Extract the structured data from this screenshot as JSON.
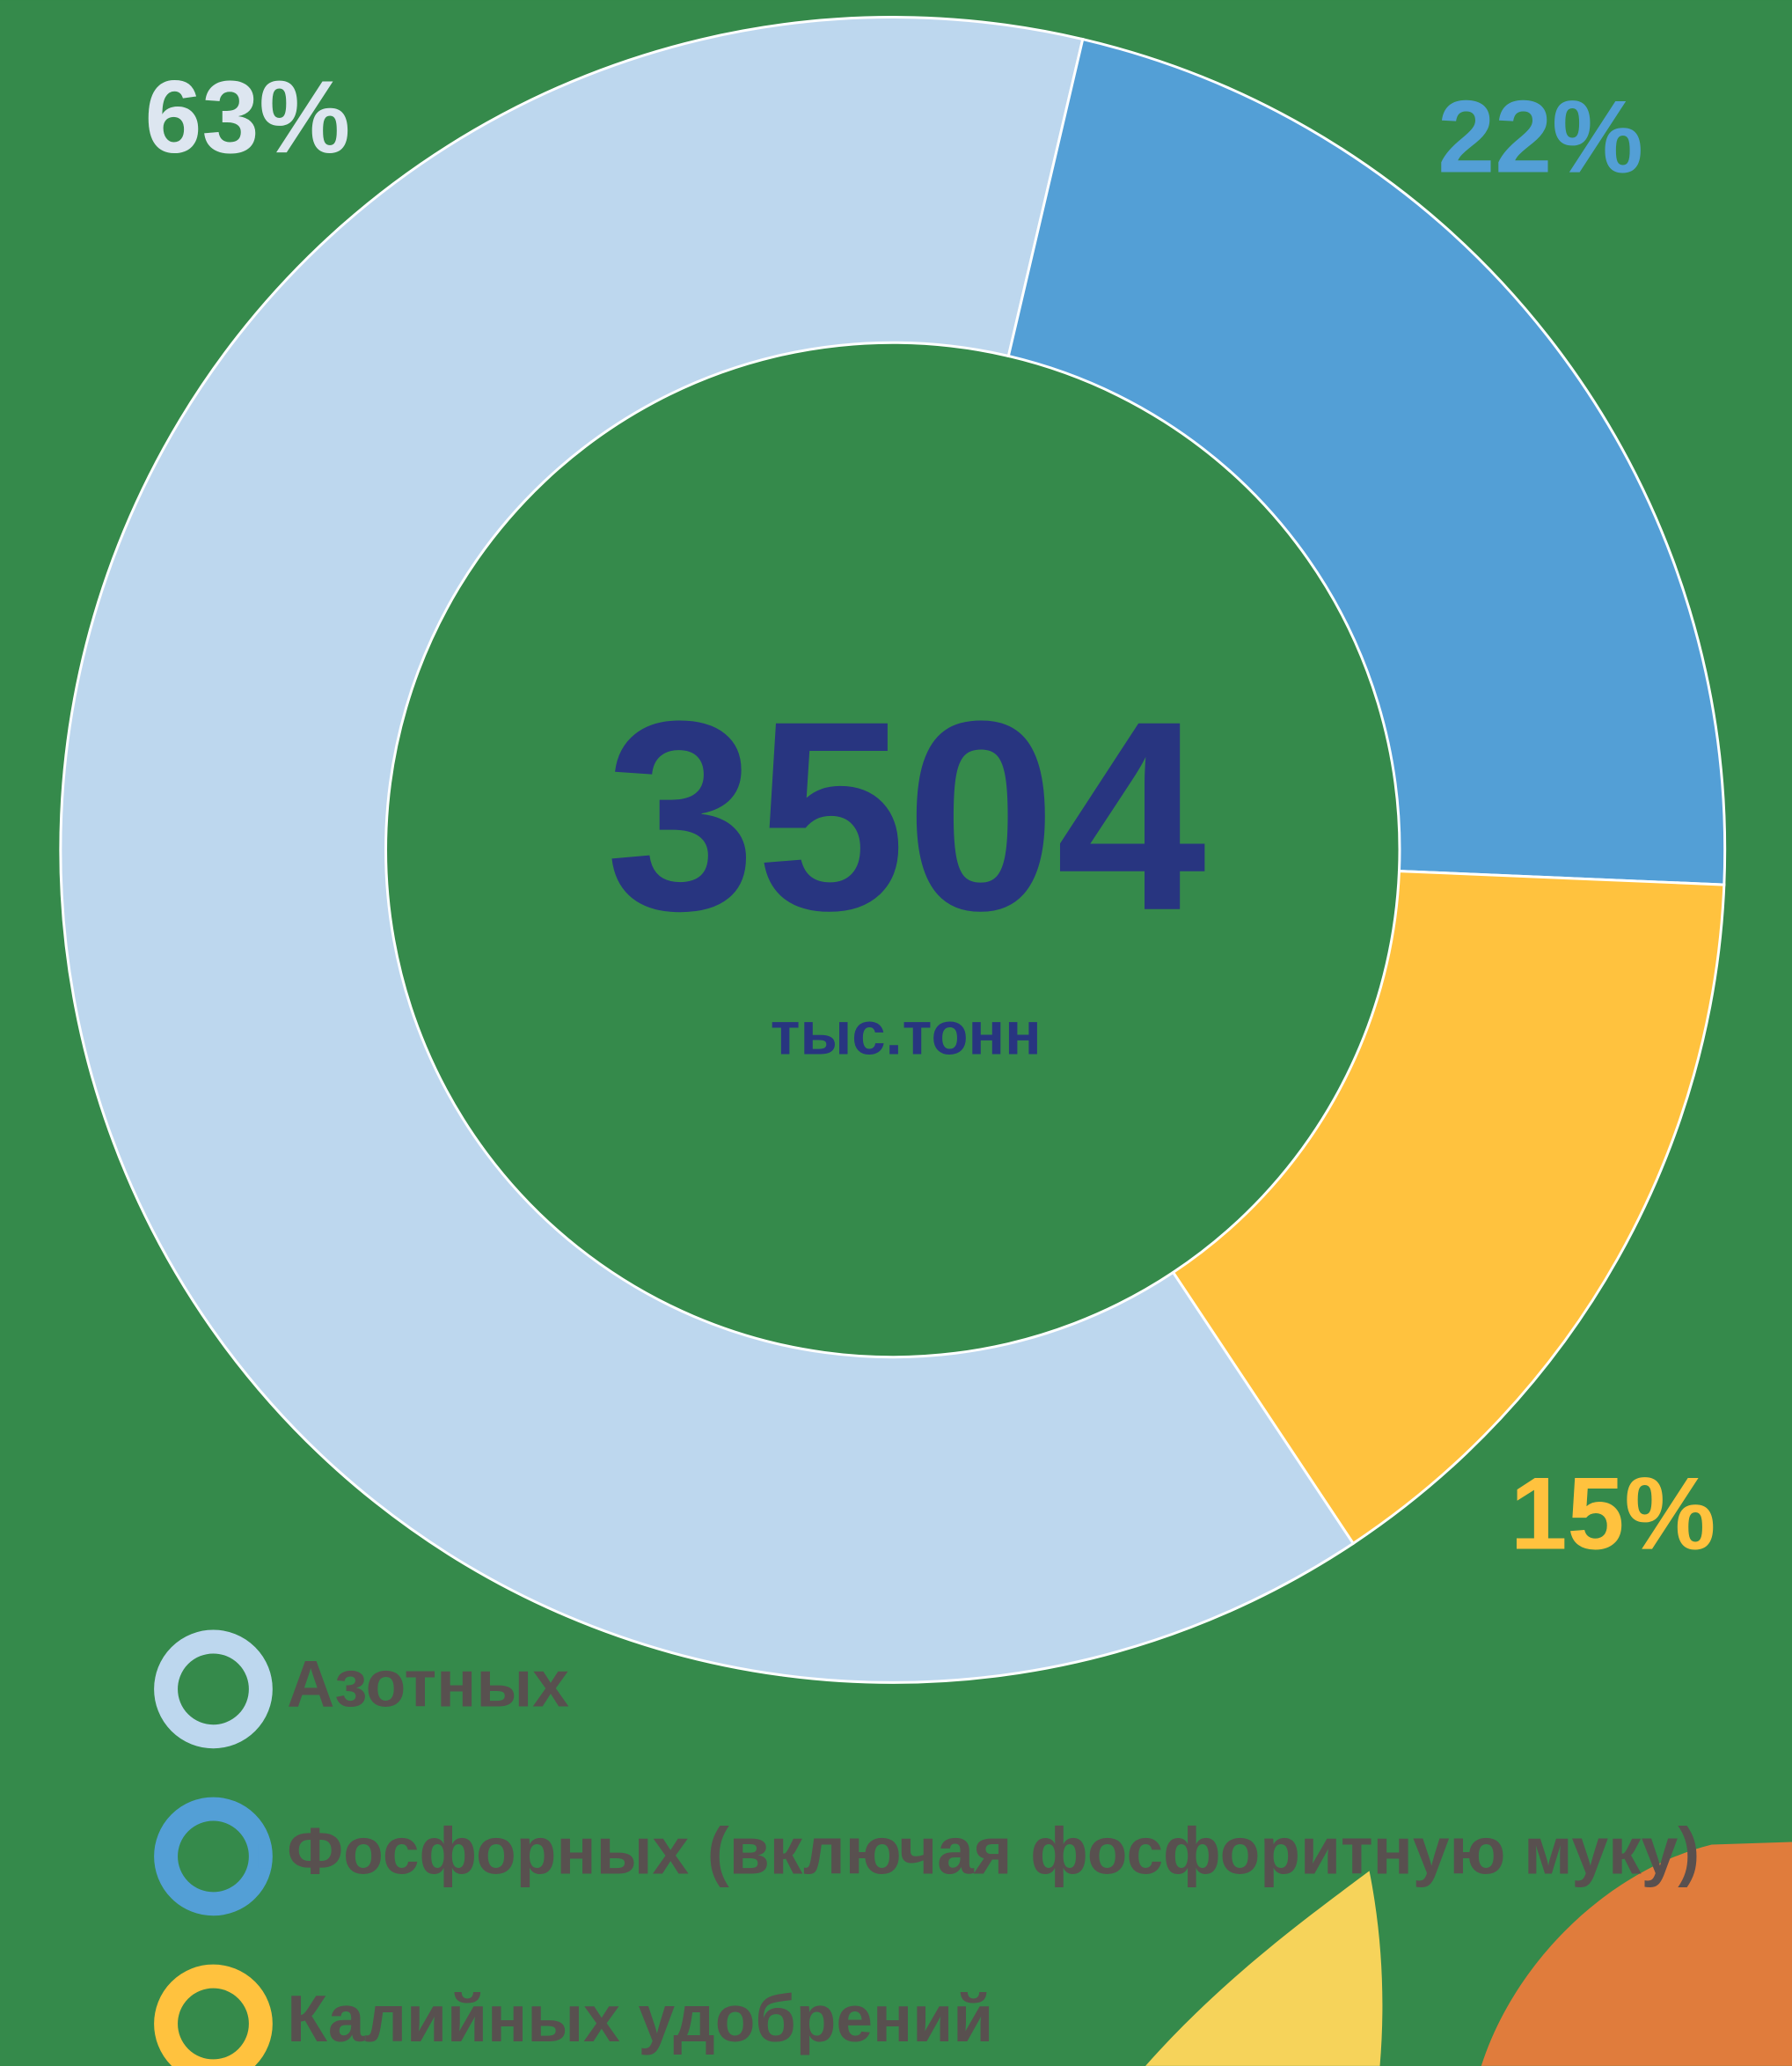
{
  "chart_data": {
    "type": "donut",
    "center_label": "3504",
    "center_sublabel": "тыс.тонн",
    "categories": [
      "Азотных",
      "Фосфорных (включая фосфоритную муку)",
      "Калийных удобрений"
    ],
    "values": [
      63,
      22,
      15
    ],
    "value_labels": [
      "63%",
      "22%",
      "15%"
    ],
    "colors": [
      "#bdd7ee",
      "#539fd6",
      "#ffc23e"
    ],
    "legend": "bottom-left"
  }
}
